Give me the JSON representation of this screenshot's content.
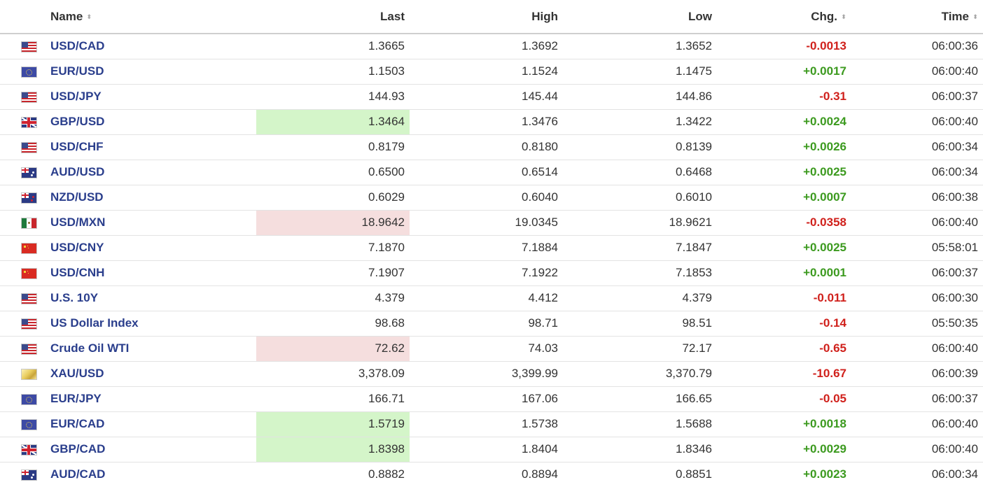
{
  "header": {
    "name": "Name",
    "last": "Last",
    "high": "High",
    "low": "Low",
    "chg": "Chg.",
    "time": "Time",
    "sort_glyph": "⬍"
  },
  "colors": {
    "link": "#2a3e8c",
    "negative": "#d0211c",
    "positive": "#3c9a1f",
    "highlight_up": "#d4f5c9",
    "highlight_down": "#f5dede"
  },
  "rows": [
    {
      "flag": "us-flag-icon",
      "name": "USD/CAD",
      "last": "1.3665",
      "high": "1.3692",
      "low": "1.3652",
      "chg": "-0.0013",
      "time": "06:00:36"
    },
    {
      "flag": "eu-flag-icon",
      "name": "EUR/USD",
      "last": "1.1503",
      "high": "1.1524",
      "low": "1.1475",
      "chg": "+0.0017",
      "time": "06:00:40"
    },
    {
      "flag": "us-flag-icon",
      "name": "USD/JPY",
      "last": "144.93",
      "high": "145.44",
      "low": "144.86",
      "chg": "-0.31",
      "time": "06:00:37"
    },
    {
      "flag": "gb-flag-icon",
      "name": "GBP/USD",
      "last": "1.3464",
      "high": "1.3476",
      "low": "1.3422",
      "chg": "+0.0024",
      "time": "06:00:40",
      "highlight": "up"
    },
    {
      "flag": "us-flag-icon",
      "name": "USD/CHF",
      "last": "0.8179",
      "high": "0.8180",
      "low": "0.8139",
      "chg": "+0.0026",
      "time": "06:00:34"
    },
    {
      "flag": "au-flag-icon",
      "name": "AUD/USD",
      "last": "0.6500",
      "high": "0.6514",
      "low": "0.6468",
      "chg": "+0.0025",
      "time": "06:00:34"
    },
    {
      "flag": "nz-flag-icon",
      "name": "NZD/USD",
      "last": "0.6029",
      "high": "0.6040",
      "low": "0.6010",
      "chg": "+0.0007",
      "time": "06:00:38"
    },
    {
      "flag": "mx-flag-icon",
      "name": "USD/MXN",
      "last": "18.9642",
      "high": "19.0345",
      "low": "18.9621",
      "chg": "-0.0358",
      "time": "06:00:40",
      "highlight": "down"
    },
    {
      "flag": "cn-flag-icon",
      "name": "USD/CNY",
      "last": "7.1870",
      "high": "7.1884",
      "low": "7.1847",
      "chg": "+0.0025",
      "time": "05:58:01"
    },
    {
      "flag": "cn-flag-icon",
      "name": "USD/CNH",
      "last": "7.1907",
      "high": "7.1922",
      "low": "7.1853",
      "chg": "+0.0001",
      "time": "06:00:37"
    },
    {
      "flag": "us-flag-icon",
      "name": "U.S. 10Y",
      "last": "4.379",
      "high": "4.412",
      "low": "4.379",
      "chg": "-0.011",
      "time": "06:00:30"
    },
    {
      "flag": "us-flag-icon",
      "name": "US Dollar Index",
      "last": "98.68",
      "high": "98.71",
      "low": "98.51",
      "chg": "-0.14",
      "time": "05:50:35"
    },
    {
      "flag": "us-flag-icon",
      "name": "Crude Oil WTI",
      "last": "72.62",
      "high": "74.03",
      "low": "72.17",
      "chg": "-0.65",
      "time": "06:00:40",
      "highlight": "down"
    },
    {
      "flag": "gold-icon",
      "name": "XAU/USD",
      "last": "3,378.09",
      "high": "3,399.99",
      "low": "3,370.79",
      "chg": "-10.67",
      "time": "06:00:39"
    },
    {
      "flag": "eu-flag-icon",
      "name": "EUR/JPY",
      "last": "166.71",
      "high": "167.06",
      "low": "166.65",
      "chg": "-0.05",
      "time": "06:00:37"
    },
    {
      "flag": "eu-flag-icon",
      "name": "EUR/CAD",
      "last": "1.5719",
      "high": "1.5738",
      "low": "1.5688",
      "chg": "+0.0018",
      "time": "06:00:40",
      "highlight": "up"
    },
    {
      "flag": "gb-flag-icon",
      "name": "GBP/CAD",
      "last": "1.8398",
      "high": "1.8404",
      "low": "1.8346",
      "chg": "+0.0029",
      "time": "06:00:40",
      "highlight": "up"
    },
    {
      "flag": "au-flag-icon",
      "name": "AUD/CAD",
      "last": "0.8882",
      "high": "0.8894",
      "low": "0.8851",
      "chg": "+0.0023",
      "time": "06:00:34"
    }
  ]
}
